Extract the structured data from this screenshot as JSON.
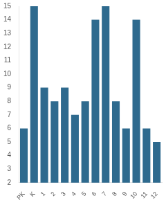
{
  "chart_data": {
    "type": "bar",
    "categories": [
      "PK",
      "K",
      "1",
      "2",
      "3",
      "4",
      "5",
      "6",
      "7",
      "8",
      "9",
      "10",
      "11",
      "12"
    ],
    "values": [
      6,
      15,
      9,
      8,
      9,
      7,
      8,
      14,
      15,
      8,
      6,
      14,
      6,
      5
    ],
    "color": "#2e6a8e",
    "ylim": [
      2,
      15
    ],
    "yticks": [
      2,
      3,
      4,
      5,
      6,
      7,
      8,
      9,
      10,
      11,
      12,
      13,
      14,
      15
    ],
    "grid": false
  }
}
